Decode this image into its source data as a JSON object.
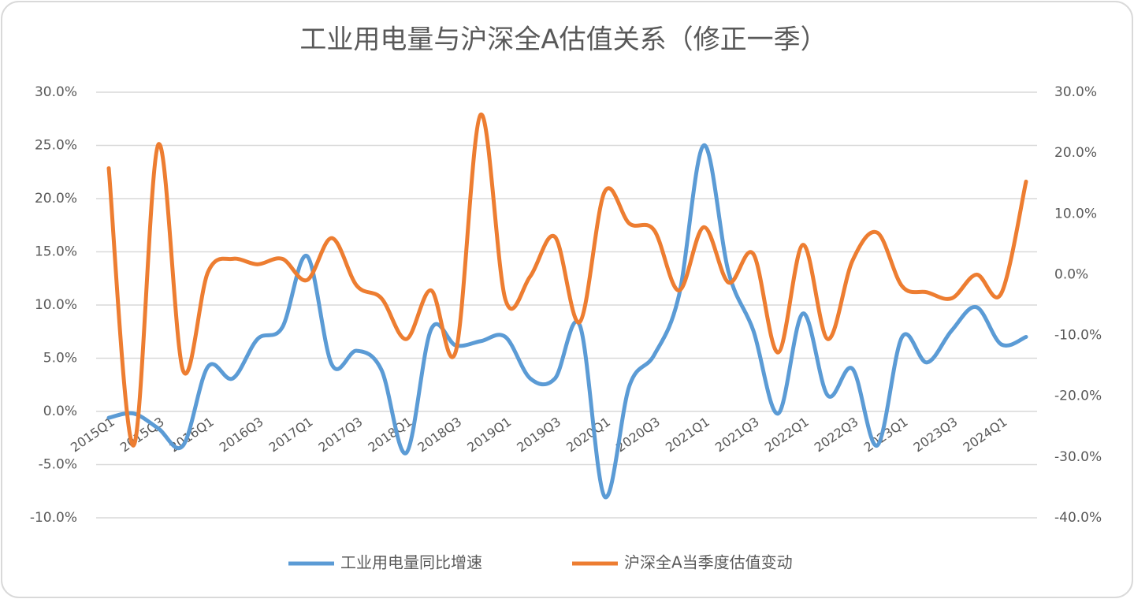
{
  "chart_data": {
    "type": "line",
    "title": "工业用电量与沪深全A估值关系（修正一季）",
    "categories": [
      "2015Q1",
      null,
      "2015Q3",
      null,
      "2016Q1",
      null,
      "2016Q3",
      null,
      "2017Q1",
      null,
      "2017Q3",
      null,
      "2018Q1",
      null,
      "2018Q3",
      null,
      "2019Q1",
      null,
      "2019Q3",
      null,
      "2020Q1",
      null,
      "2020Q3",
      null,
      "2021Q1",
      null,
      "2021Q3",
      null,
      "2022Q1",
      null,
      "2022Q3",
      null,
      "2023Q1",
      null,
      "2023Q3",
      null,
      "2024Q1",
      null
    ],
    "series": [
      {
        "name": "工业用电量同比增速",
        "color": "#5b9bd5",
        "axis": "y",
        "values": [
          -0.6,
          -0.2,
          -1.6,
          -3.2,
          4.2,
          3.1,
          6.8,
          7.9,
          14.6,
          4.4,
          5.7,
          3.9,
          -3.9,
          7.7,
          6.2,
          6.6,
          7.0,
          3.1,
          3.1,
          8.1,
          -8.0,
          2.4,
          5.3,
          10.9,
          25.0,
          13.1,
          7.6,
          -0.2,
          9.2,
          1.5,
          4.0,
          -3.2,
          7.0,
          4.6,
          7.6,
          9.8,
          6.3,
          7.0
        ]
      },
      {
        "name": "沪深全A当季度估值变动",
        "color": "#ed7d31",
        "axis": "y2",
        "values": [
          17.5,
          -28.1,
          21.4,
          -15.8,
          0.4,
          2.6,
          1.7,
          2.6,
          -0.9,
          6.0,
          -1.8,
          -3.9,
          -10.6,
          -2.6,
          -12.6,
          26.3,
          -4.1,
          -0.3,
          6.2,
          -7.8,
          13.6,
          8.4,
          7.3,
          -2.6,
          7.8,
          -1.3,
          3.4,
          -12.8,
          4.9,
          -10.6,
          2.3,
          6.9,
          -1.9,
          -2.9,
          -3.9,
          0,
          -3.1,
          15.3
        ]
      }
    ],
    "ylim": [
      -10,
      30
    ],
    "yticks": [
      {
        "value": -10,
        "label": "-10.0%"
      },
      {
        "value": -5,
        "label": "-5.0%"
      },
      {
        "value": 0,
        "label": "0.0%"
      },
      {
        "value": 5,
        "label": "5.0%"
      },
      {
        "value": 10,
        "label": "10.0%"
      },
      {
        "value": 15,
        "label": "15.0%"
      },
      {
        "value": 20,
        "label": "20.0%"
      },
      {
        "value": 25,
        "label": "25.0%"
      },
      {
        "value": 30,
        "label": "30.0%"
      }
    ],
    "y2lim": [
      -40,
      30
    ],
    "y2ticks": [
      {
        "value": -40,
        "label": "-40.0%"
      },
      {
        "value": -30,
        "label": "-30.0%"
      },
      {
        "value": -20,
        "label": "-20.0%"
      },
      {
        "value": -10,
        "label": "-10.0%"
      },
      {
        "value": 0,
        "label": "0.0%"
      },
      {
        "value": 10,
        "label": "10.0%"
      },
      {
        "value": 20,
        "label": "20.0%"
      },
      {
        "value": 30,
        "label": "30.0%"
      }
    ],
    "grid": true,
    "legend": "bottom"
  }
}
